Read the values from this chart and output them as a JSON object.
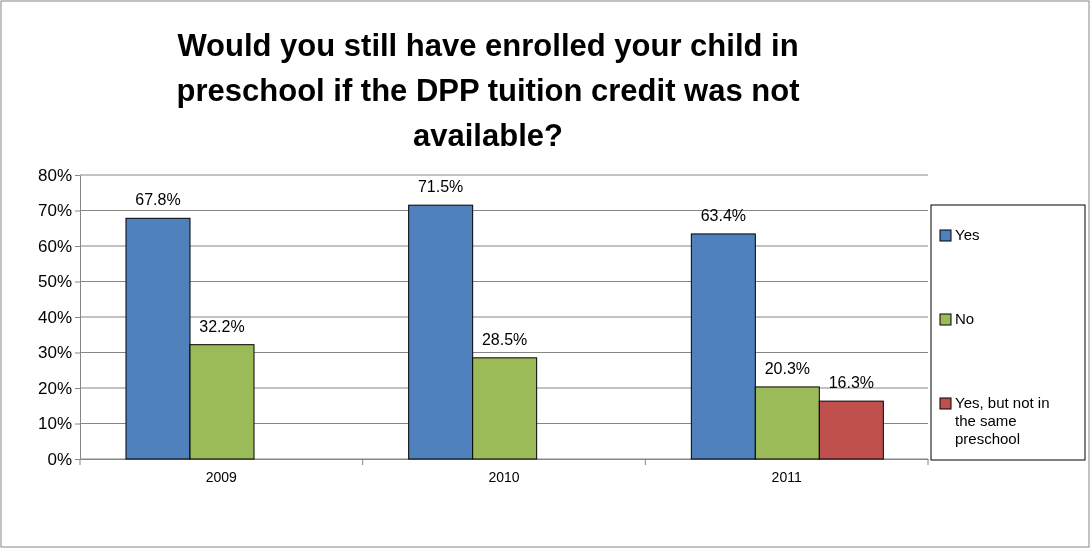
{
  "chart_data": {
    "type": "bar",
    "title": "Would you still have enrolled your child in preschool if the DPP tuition credit was not available?",
    "categories": [
      "2009",
      "2010",
      "2011"
    ],
    "series": [
      {
        "name": "Yes",
        "color": "#4f81bd",
        "values": [
          67.8,
          71.5,
          63.4
        ]
      },
      {
        "name": "No",
        "color": "#9bbb59",
        "values": [
          32.2,
          28.5,
          20.3
        ]
      },
      {
        "name": "Yes, but not in the same preschool",
        "color": "#c0504d",
        "values": [
          null,
          null,
          16.3
        ]
      }
    ],
    "ylim": [
      0,
      80
    ],
    "yticks": [
      {
        "value": 0,
        "label": "0%"
      },
      {
        "value": 10,
        "label": "10%"
      },
      {
        "value": 20,
        "label": "20%"
      },
      {
        "value": 30,
        "label": "30%"
      },
      {
        "value": 40,
        "label": "40%"
      },
      {
        "value": 50,
        "label": "50%"
      },
      {
        "value": 60,
        "label": "60%"
      },
      {
        "value": 70,
        "label": "70%"
      },
      {
        "value": 80,
        "label": "80%"
      }
    ],
    "value_labels": [
      [
        "67.8%",
        "71.5%",
        "63.4%"
      ],
      [
        "32.2%",
        "28.5%",
        "20.3%"
      ],
      [
        null,
        null,
        "16.3%"
      ]
    ],
    "grid": "y",
    "legend": "right"
  }
}
